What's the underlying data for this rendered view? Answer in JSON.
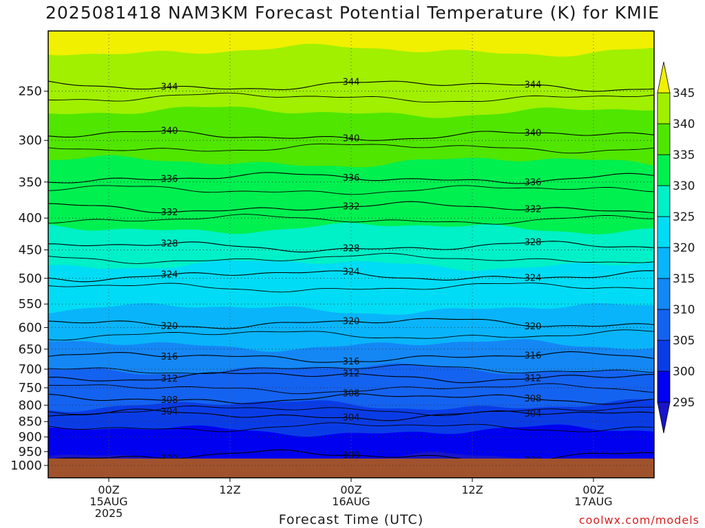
{
  "chart_data": {
    "type": "heatmap",
    "title": "2025081418 NAM3KM Forecast Potential Temperature (K) for KMIE",
    "xlabel": "Forecast Time (UTC)",
    "ylabel": "",
    "credit": "coolwx.com/models",
    "y_axis": {
      "scale": "pressure (log)",
      "ticks": [
        "250",
        "300",
        "350",
        "400",
        "450",
        "500",
        "550",
        "600",
        "650",
        "700",
        "750",
        "800",
        "850",
        "900",
        "950",
        "1000"
      ],
      "range": [
        200,
        1000
      ]
    },
    "x_axis": {
      "ticks": [
        {
          "line1": "00Z",
          "line2": "15AUG",
          "line3": "2025"
        },
        {
          "line1": "12Z",
          "line2": "",
          "line3": ""
        },
        {
          "line1": "00Z",
          "line2": "16AUG",
          "line3": ""
        },
        {
          "line1": "12Z",
          "line2": "",
          "line3": ""
        },
        {
          "line1": "00Z",
          "line2": "17AUG",
          "line3": ""
        }
      ]
    },
    "colorbar": {
      "levels": [
        "295",
        "300",
        "305",
        "310",
        "315",
        "320",
        "325",
        "330",
        "335",
        "340",
        "345"
      ],
      "colors": [
        "#1a14c8",
        "#0000f0",
        "#0a3ce6",
        "#1462f0",
        "#1487f5",
        "#0ab4fa",
        "#00dcf5",
        "#00f0c8",
        "#00f050",
        "#50e600",
        "#a0f000",
        "#f0f000"
      ]
    },
    "ground_color": "#a0522d",
    "contour_levels": [
      {
        "value": 300,
        "label": "300",
        "pressure": 965
      },
      {
        "value": 304,
        "label": "304",
        "pressure": 830
      },
      {
        "value": 308,
        "label": "308",
        "pressure": 780
      },
      {
        "value": 312,
        "label": "312",
        "pressure": 720
      },
      {
        "value": 316,
        "label": "316",
        "pressure": 670
      },
      {
        "value": 320,
        "label": "320",
        "pressure": 590
      },
      {
        "value": 324,
        "label": "324",
        "pressure": 495
      },
      {
        "value": 328,
        "label": "328",
        "pressure": 445
      },
      {
        "value": 332,
        "label": "332",
        "pressure": 385
      },
      {
        "value": 336,
        "label": "336",
        "pressure": 345
      },
      {
        "value": 340,
        "label": "340",
        "pressure": 295
      },
      {
        "value": 344,
        "label": "344",
        "pressure": 245
      }
    ]
  }
}
